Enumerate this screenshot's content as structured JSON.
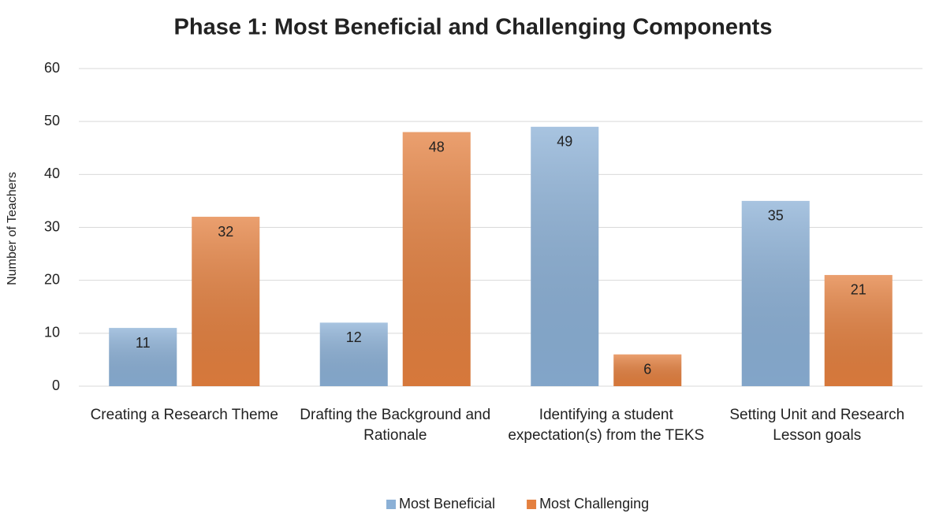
{
  "chart_data": {
    "type": "bar",
    "title": "Phase 1: Most Beneficial and Challenging Components",
    "y_label": "Number of Teachers",
    "categories": [
      "Creating a Research Theme",
      "Drafting the Background and Rationale",
      "Identifying a student expectation(s) from the TEKS",
      "Setting Unit and Research Lesson goals"
    ],
    "series": [
      {
        "name": "Most Beneficial",
        "color": "#8bb0d6",
        "values": [
          11,
          12,
          49,
          35
        ]
      },
      {
        "name": "Most Challenging",
        "color": "#e4803f",
        "values": [
          32,
          48,
          6,
          21
        ]
      }
    ],
    "ylim": [
      0,
      60
    ],
    "yticks": [
      0,
      10,
      20,
      30,
      40,
      50,
      60
    ],
    "grid": true,
    "legend": "bottom"
  }
}
